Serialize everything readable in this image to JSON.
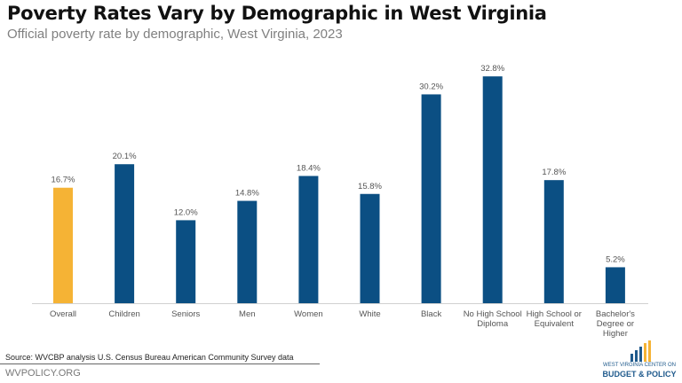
{
  "chart_data": {
    "type": "bar",
    "title": "Poverty Rates Vary by Demographic  in West Virginia",
    "subtitle": "Official poverty rate by demographic, West Virginia, 2023",
    "categories": [
      "Overall",
      "Children",
      "Seniors",
      "Men",
      "Women",
      "White",
      "Black",
      "No High School Diploma",
      "High School or Equivalent",
      "Bachelor's Degree or Higher"
    ],
    "category_lines": [
      [
        "Overall"
      ],
      [
        "Children"
      ],
      [
        "Seniors"
      ],
      [
        "Men"
      ],
      [
        "Women"
      ],
      [
        "White"
      ],
      [
        "Black"
      ],
      [
        "No High School",
        "Diploma"
      ],
      [
        "High School or",
        "Equivalent"
      ],
      [
        "Bachelor's",
        "Degree or",
        "Higher"
      ]
    ],
    "values": [
      16.7,
      20.1,
      12.0,
      14.8,
      18.4,
      15.8,
      30.2,
      32.8,
      17.8,
      5.2
    ],
    "data_labels": [
      "16.7%",
      "20.1%",
      "12.0%",
      "14.8%",
      "18.4%",
      "15.8%",
      "30.2%",
      "32.8%",
      "17.8%",
      "5.2%"
    ],
    "colors": {
      "highlight": "#F5B335",
      "default": "#0B4F83"
    },
    "highlight_index": 0,
    "ylim": [
      0,
      35
    ],
    "grid": false,
    "xlabel": "",
    "ylabel": ""
  },
  "footer": {
    "source": "Source: WVCBP analysis U.S. Census Bureau American Community Survey data",
    "site": "WVPOLICY.ORG"
  },
  "logo": {
    "line1": "WEST VIRGINIA CENTER ON",
    "line2": "BUDGET & POLICY"
  }
}
